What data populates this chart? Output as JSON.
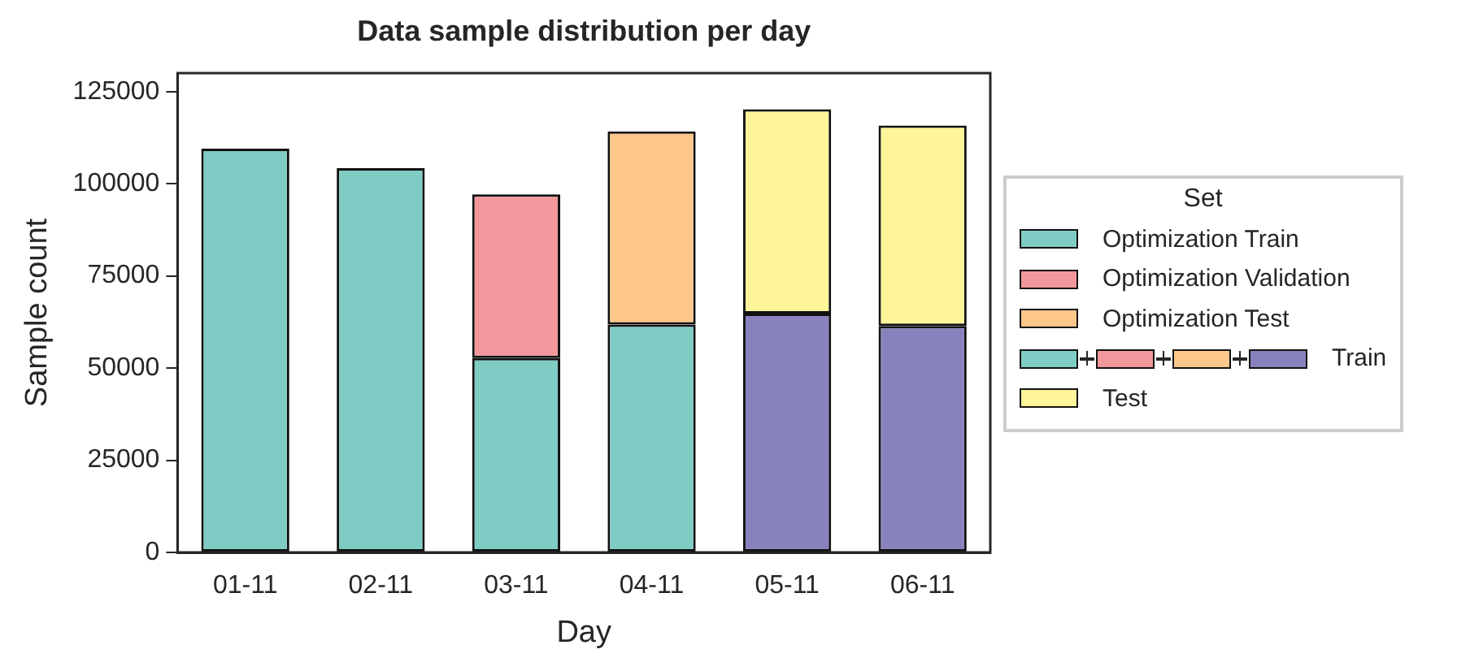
{
  "chart_data": {
    "type": "bar",
    "title": "Data sample distribution per day",
    "xlabel": "Day",
    "ylabel": "Sample count",
    "legend_title": "Set",
    "categories": [
      "01-11",
      "02-11",
      "03-11",
      "04-11",
      "05-11",
      "06-11"
    ],
    "stacked": true,
    "ylim": [
      0,
      130000
    ],
    "yticks": [
      0,
      25000,
      50000,
      75000,
      100000,
      125000
    ],
    "grid": false,
    "legend": "right",
    "series": [
      {
        "name": "Optimization Train",
        "color": "#7fccc4",
        "values": [
          109500,
          104200,
          52700,
          61800,
          null,
          null
        ]
      },
      {
        "name": "Optimization Validation",
        "color": "#f2989c",
        "values": [
          null,
          null,
          44400,
          null,
          null,
          null
        ]
      },
      {
        "name": "Optimization Test",
        "color": "#fdc68a",
        "values": [
          null,
          null,
          null,
          52400,
          null,
          null
        ]
      },
      {
        "name": "Train",
        "color": "#8882bc",
        "values": [
          null,
          null,
          null,
          null,
          64800,
          61400
        ]
      },
      {
        "name": "Test",
        "color": "#fef59a",
        "values": [
          null,
          null,
          null,
          null,
          55400,
          54400
        ]
      }
    ]
  }
}
